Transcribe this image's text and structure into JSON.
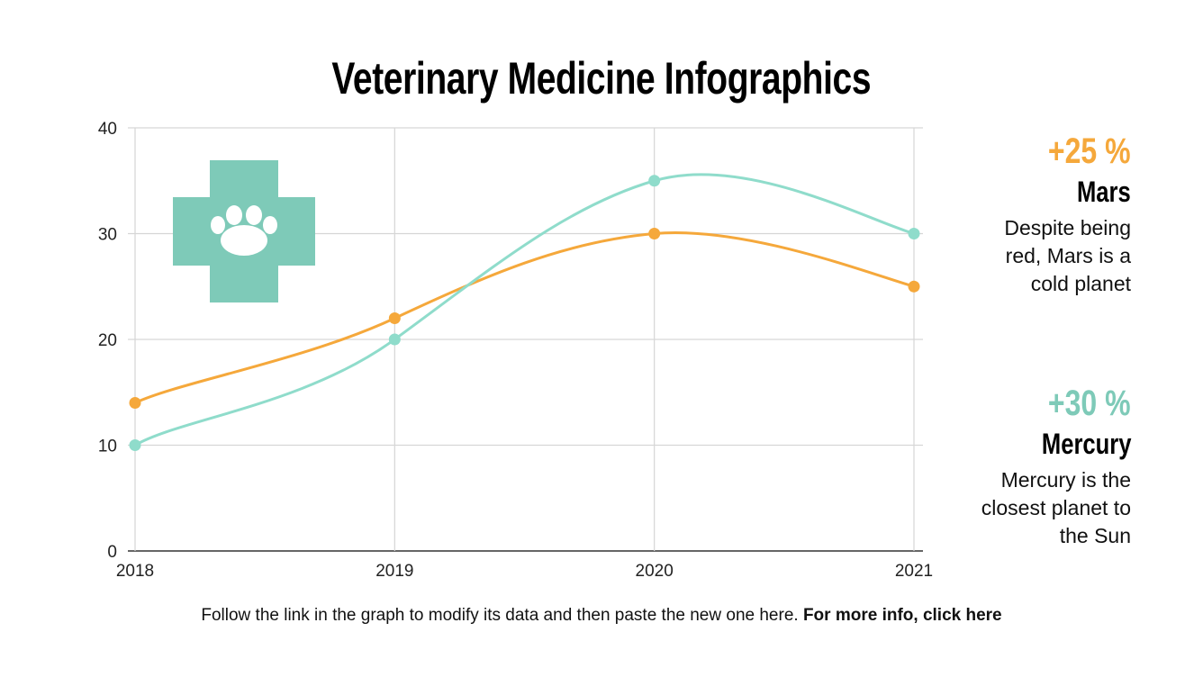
{
  "title": "Veterinary Medicine Infographics",
  "chart_data": {
    "type": "line",
    "categories": [
      "2018",
      "2019",
      "2020",
      "2021"
    ],
    "series": [
      {
        "color": "#f5a83b",
        "values": [
          14,
          22,
          30,
          25
        ]
      },
      {
        "color": "#8fdccb",
        "values": [
          10,
          20,
          35,
          30
        ]
      }
    ],
    "ylim": [
      0,
      40
    ],
    "yticks": [
      "0",
      "10",
      "20",
      "30",
      "40"
    ],
    "grid": true,
    "smooth": true
  },
  "icon": {
    "name": "paw-medical-cross-icon",
    "color": "#7ecab8"
  },
  "stats": [
    {
      "value": "+25 %",
      "name": "Mars",
      "desc": "Despite being red, Mars is a cold planet",
      "color": "#f5a83b"
    },
    {
      "value": "+30 %",
      "name": "Mercury",
      "desc": "Mercury is the closest planet to the Sun",
      "color": "#7ecab8"
    }
  ],
  "footer": {
    "text": "Follow the link in the graph to modify its data and then paste the new one here. ",
    "link": "For more info, click here"
  }
}
